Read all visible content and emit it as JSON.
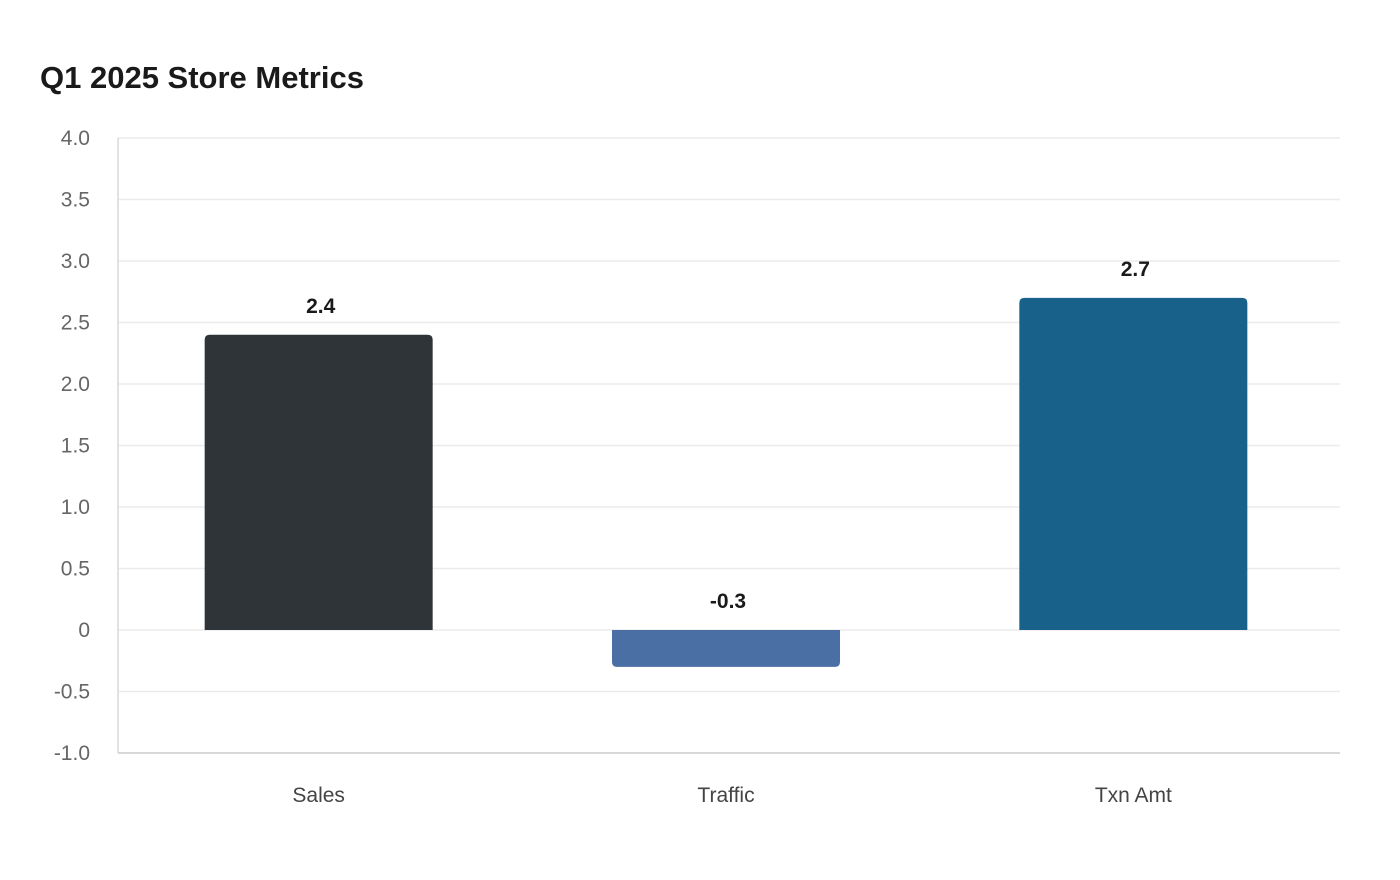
{
  "chart_data": {
    "type": "bar",
    "title": "Q1 2025 Store Metrics",
    "categories": [
      "Sales",
      "Traffic",
      "Txn Amt"
    ],
    "values": [
      2.4,
      -0.3,
      2.7
    ],
    "data_labels": [
      "2.4",
      "-0.3",
      "2.7"
    ],
    "colors": [
      "#2e3437",
      "#4a6fa5",
      "#17618a"
    ],
    "ylim": [
      -1.0,
      4.0
    ],
    "yticks": [
      -1.0,
      -0.5,
      0,
      0.5,
      1.0,
      1.5,
      2.0,
      2.5,
      3.0,
      3.5,
      4.0
    ],
    "ytick_labels": [
      "-1.0",
      "-0.5",
      "0",
      "0.5",
      "1.0",
      "1.5",
      "2.0",
      "2.5",
      "3.0",
      "3.5",
      "4.0"
    ],
    "xlabel": "",
    "ylabel": "",
    "grid": true,
    "legend": "none"
  }
}
